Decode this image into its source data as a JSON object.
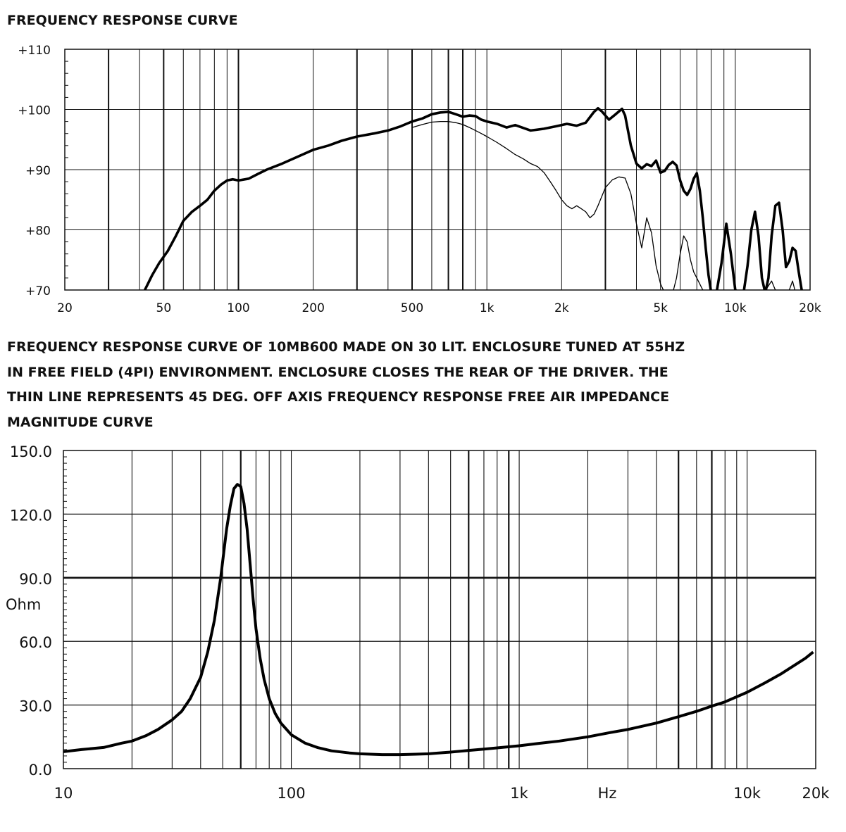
{
  "texts": {
    "chart1_title": "FREQUENCY RESPONSE CURVE",
    "caption_lines": [
      "FREQUENCY RESPONSE CURVE OF 10MB600 MADE ON 30 LIT. ENCLOSURE TUNED AT 55HZ",
      "IN FREE FIELD (4PI) ENVIRONMENT. ENCLOSURE CLOSES THE REAR OF THE DRIVER. THE",
      "THIN LINE REPRESENTS 45 DEG. OFF AXIS FREQUENCY RESPONSE FREE AIR IMPEDANCE",
      "MAGNITUDE CURVE"
    ]
  },
  "chart_data": [
    {
      "type": "line",
      "title": "FREQUENCY RESPONSE CURVE",
      "xscale": "log",
      "xlim": [
        20,
        20000
      ],
      "ylim": [
        70,
        110
      ],
      "grid": true,
      "x_tick_labels": [
        {
          "value": 20,
          "label": "20"
        },
        {
          "value": 50,
          "label": "50"
        },
        {
          "value": 100,
          "label": "100"
        },
        {
          "value": 200,
          "label": "200"
        },
        {
          "value": 500,
          "label": "500"
        },
        {
          "value": 1000,
          "label": "1k"
        },
        {
          "value": 2000,
          "label": "2k"
        },
        {
          "value": 5000,
          "label": "5k"
        },
        {
          "value": 10000,
          "label": "10k"
        },
        {
          "value": 20000,
          "label": "20k"
        }
      ],
      "y_tick_labels": [
        {
          "value": 110,
          "label": "+110"
        },
        {
          "value": 100,
          "label": "+100"
        },
        {
          "value": 90,
          "label": "+90"
        },
        {
          "value": 80,
          "label": "+80"
        },
        {
          "value": 70,
          "label": "+70"
        }
      ],
      "series": [
        {
          "style": "thick",
          "x": [
            42,
            45,
            48,
            52,
            56,
            60,
            65,
            70,
            75,
            80,
            85,
            90,
            95,
            100,
            110,
            120,
            130,
            150,
            170,
            200,
            230,
            260,
            300,
            350,
            400,
            450,
            500,
            550,
            600,
            650,
            700,
            750,
            800,
            850,
            900,
            950,
            1000,
            1100,
            1200,
            1300,
            1500,
            1700,
            1900,
            2100,
            2300,
            2500,
            2700,
            2800,
            2900,
            3100,
            3300,
            3500,
            3600,
            3800,
            4000,
            4200,
            4400,
            4600,
            4800,
            5000,
            5200,
            5400,
            5600,
            5800,
            6000,
            6200,
            6400,
            6600,
            6800,
            7000,
            7200,
            7400,
            7600,
            7800,
            8000,
            8400,
            8800,
            9200,
            9600,
            10000,
            10400,
            10800,
            11200,
            11600,
            12000,
            12400,
            12800,
            13200,
            13600,
            14000,
            14500,
            15000,
            15500,
            16000,
            16500,
            17000,
            17500,
            18000,
            18500,
            19000,
            20000
          ],
          "y": [
            70,
            72.5,
            74.5,
            76.5,
            79,
            81.5,
            83,
            84,
            85,
            86.5,
            87.5,
            88.2,
            88.4,
            88.2,
            88.5,
            89.3,
            90,
            91,
            92,
            93.3,
            94,
            94.8,
            95.5,
            96,
            96.5,
            97.2,
            98,
            98.5,
            99.2,
            99.5,
            99.6,
            99.2,
            98.8,
            99,
            98.9,
            98.3,
            98,
            97.6,
            97,
            97.4,
            96.5,
            96.8,
            97.2,
            97.6,
            97.3,
            97.8,
            99.6,
            100.2,
            99.7,
            98.3,
            99.2,
            100.1,
            99,
            94,
            91,
            90.2,
            90.9,
            90.6,
            91.5,
            89.5,
            89.8,
            90.8,
            91.3,
            90.7,
            88.2,
            86.5,
            85.8,
            86.8,
            88.5,
            89.4,
            86.5,
            82,
            77,
            72.5,
            69.5,
            69.5,
            74.5,
            81,
            76,
            70,
            69.5,
            69.5,
            74,
            80,
            83,
            79,
            72,
            69.5,
            72,
            79,
            84,
            84.5,
            80,
            73.8,
            74.8,
            77,
            76.5,
            73,
            70,
            69.5,
            69.5
          ]
        },
        {
          "style": "thin",
          "x": [
            500,
            550,
            600,
            650,
            700,
            750,
            800,
            850,
            900,
            950,
            1000,
            1100,
            1200,
            1300,
            1400,
            1500,
            1600,
            1700,
            1800,
            1900,
            2000,
            2100,
            2200,
            2300,
            2400,
            2500,
            2600,
            2700,
            2800,
            3000,
            3200,
            3400,
            3600,
            3800,
            4000,
            4200,
            4400,
            4600,
            4800,
            5000,
            5200,
            5400,
            5600,
            5800,
            6000,
            6200,
            6400,
            6600,
            6800,
            7000,
            7400,
            7800,
            8200,
            8600,
            9000,
            9500,
            10000,
            10500,
            11000,
            11500,
            12000,
            12500,
            13000,
            13500,
            14000,
            14500,
            15000,
            15500,
            16000,
            16500,
            17000,
            17500,
            18000,
            19000,
            20000
          ],
          "y": [
            97,
            97.5,
            97.9,
            98,
            98,
            97.8,
            97.5,
            97,
            96.5,
            96,
            95.5,
            94.5,
            93.5,
            92.5,
            91.8,
            91,
            90.5,
            89.5,
            88,
            86.5,
            85,
            84,
            83.5,
            84,
            83.5,
            83,
            82,
            82.6,
            84,
            87,
            88.3,
            88.8,
            88.6,
            86,
            81,
            77,
            82,
            79.5,
            74,
            71,
            69.5,
            69.5,
            69.5,
            72,
            76,
            79,
            78,
            75,
            73,
            72,
            70,
            69.5,
            69.5,
            69.5,
            69.5,
            69.5,
            69.5,
            69.5,
            69.5,
            69.5,
            69.5,
            69.5,
            69.5,
            70.5,
            71.5,
            70,
            69.5,
            69.5,
            69.5,
            70,
            71.5,
            69.5,
            69.5,
            69.5,
            69.5
          ]
        }
      ]
    },
    {
      "type": "line",
      "xscale": "log",
      "xlim": [
        10,
        20000
      ],
      "ylim": [
        0,
        150
      ],
      "ylabel": "Ohm",
      "xlabel": "Hz",
      "grid": true,
      "x_tick_labels": [
        {
          "value": 10,
          "label": "10"
        },
        {
          "value": 100,
          "label": "100"
        },
        {
          "value": 1000,
          "label": "1k"
        },
        {
          "value": 10000,
          "label": "10k"
        },
        {
          "value": 20000,
          "label": "20k"
        }
      ],
      "y_tick_labels": [
        {
          "value": 150,
          "label": "150.0"
        },
        {
          "value": 120,
          "label": "120.0"
        },
        {
          "value": 90,
          "label": "90.0"
        },
        {
          "value": 60,
          "label": "60.0"
        },
        {
          "value": 30,
          "label": "30.0"
        },
        {
          "value": 0,
          "label": "0.0"
        }
      ],
      "series": [
        {
          "style": "thick",
          "x": [
            10,
            12,
            15,
            18,
            20,
            23,
            26,
            30,
            33,
            36,
            40,
            43,
            46,
            49,
            52,
            54,
            56,
            58,
            60,
            62,
            64,
            66,
            68,
            70,
            73,
            76,
            80,
            85,
            90,
            100,
            115,
            130,
            150,
            180,
            200,
            250,
            300,
            350,
            400,
            500,
            600,
            700,
            800,
            1000,
            1200,
            1500,
            2000,
            2500,
            3000,
            4000,
            5000,
            6000,
            7000,
            8000,
            10000,
            12000,
            14000,
            16000,
            18000,
            19500
          ],
          "y": [
            8,
            9,
            10,
            12,
            13,
            15.5,
            18.5,
            23,
            27,
            33,
            43,
            55,
            70,
            90,
            113,
            124,
            132,
            134,
            133,
            125,
            113,
            96,
            80,
            66,
            52,
            42,
            33,
            26,
            21.5,
            16,
            12,
            10,
            8.4,
            7.4,
            7,
            6.6,
            6.6,
            6.8,
            7,
            7.8,
            8.6,
            9.2,
            9.8,
            10.8,
            11.8,
            13,
            15,
            17,
            18.5,
            21.5,
            24.5,
            27,
            29.5,
            31.5,
            36,
            40.5,
            44.5,
            48.5,
            52,
            55
          ]
        }
      ]
    }
  ]
}
